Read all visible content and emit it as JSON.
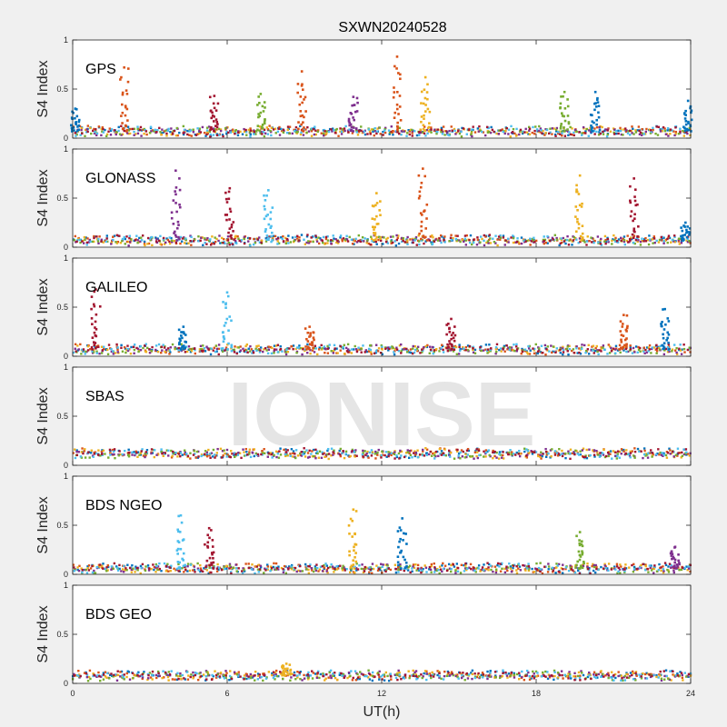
{
  "chart_data": {
    "type": "scatter",
    "title": "SXWN20240528",
    "xlabel": "UT(h)",
    "ylabel": "S4 Index",
    "xlim": [
      0,
      24
    ],
    "xticks": [
      "0",
      "6",
      "12",
      "18",
      "24"
    ],
    "ylim": [
      0,
      1
    ],
    "yticks": [
      "0",
      "0.5",
      "1"
    ],
    "grid": false,
    "watermark": "IONISE",
    "colors": [
      "#0072bd",
      "#d95319",
      "#edb120",
      "#7e2f8e",
      "#77ac30",
      "#4dbeee",
      "#a2142f"
    ],
    "panels": [
      {
        "label": "GPS",
        "baseline": 0.07,
        "spikes": [
          {
            "x": 0.1,
            "peak": 0.3,
            "color": 0
          },
          {
            "x": 2.0,
            "peak": 0.72,
            "color": 1
          },
          {
            "x": 5.5,
            "peak": 0.43,
            "color": 6
          },
          {
            "x": 7.3,
            "peak": 0.45,
            "color": 4
          },
          {
            "x": 8.9,
            "peak": 0.68,
            "color": 1
          },
          {
            "x": 10.9,
            "peak": 0.42,
            "color": 3
          },
          {
            "x": 12.6,
            "peak": 0.83,
            "color": 1
          },
          {
            "x": 13.7,
            "peak": 0.62,
            "color": 2
          },
          {
            "x": 19.1,
            "peak": 0.47,
            "color": 4
          },
          {
            "x": 20.3,
            "peak": 0.47,
            "color": 0
          },
          {
            "x": 23.9,
            "peak": 0.38,
            "color": 0
          }
        ]
      },
      {
        "label": "GLONASS",
        "baseline": 0.07,
        "spikes": [
          {
            "x": 4.0,
            "peak": 0.78,
            "color": 3
          },
          {
            "x": 6.1,
            "peak": 0.6,
            "color": 6
          },
          {
            "x": 7.6,
            "peak": 0.58,
            "color": 5
          },
          {
            "x": 11.8,
            "peak": 0.55,
            "color": 2
          },
          {
            "x": 13.6,
            "peak": 0.8,
            "color": 1
          },
          {
            "x": 19.7,
            "peak": 0.73,
            "color": 2
          },
          {
            "x": 21.8,
            "peak": 0.7,
            "color": 6
          },
          {
            "x": 23.8,
            "peak": 0.25,
            "color": 0
          }
        ]
      },
      {
        "label": "GALILEO",
        "baseline": 0.07,
        "spikes": [
          {
            "x": 0.9,
            "peak": 0.68,
            "color": 6
          },
          {
            "x": 4.3,
            "peak": 0.3,
            "color": 0
          },
          {
            "x": 6.0,
            "peak": 0.65,
            "color": 5
          },
          {
            "x": 9.2,
            "peak": 0.3,
            "color": 1
          },
          {
            "x": 14.7,
            "peak": 0.38,
            "color": 6
          },
          {
            "x": 21.4,
            "peak": 0.42,
            "color": 1
          },
          {
            "x": 23.0,
            "peak": 0.48,
            "color": 0
          }
        ]
      },
      {
        "label": "SBAS",
        "baseline": 0.12,
        "spikes": []
      },
      {
        "label": "BDS NGEO",
        "baseline": 0.06,
        "spikes": [
          {
            "x": 4.2,
            "peak": 0.6,
            "color": 5
          },
          {
            "x": 5.3,
            "peak": 0.47,
            "color": 6
          },
          {
            "x": 10.9,
            "peak": 0.66,
            "color": 2
          },
          {
            "x": 12.8,
            "peak": 0.57,
            "color": 0
          },
          {
            "x": 19.7,
            "peak": 0.43,
            "color": 4
          },
          {
            "x": 23.4,
            "peak": 0.28,
            "color": 3
          }
        ]
      },
      {
        "label": "BDS GEO",
        "baseline": 0.08,
        "spikes": [
          {
            "x": 8.3,
            "peak": 0.2,
            "color": 2
          }
        ]
      }
    ]
  }
}
